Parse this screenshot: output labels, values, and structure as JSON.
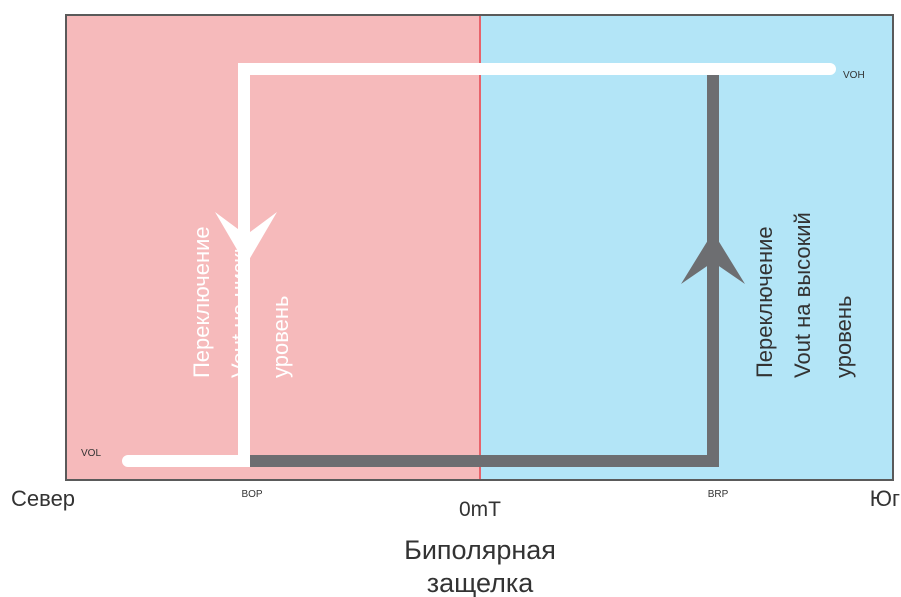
{
  "labels": {
    "north": "Север",
    "south": "Юг",
    "zero": "0mT",
    "bop": "BOP",
    "brp": "BRP",
    "vol": "VOL",
    "voh": "VOH",
    "switch_low": [
      "Переключение",
      "Vout на низкий",
      "уровень"
    ],
    "switch_high": [
      "Переключение",
      "Vout на высокий",
      "уровень"
    ],
    "caption": [
      "Биполярная",
      "защелка"
    ]
  },
  "colors": {
    "north_region": "#f6babb",
    "south_region": "#b3e5f7",
    "divider": "#e8636b",
    "frame": "#5a5a5a",
    "rising_path": "#6d6e71",
    "falling_path": "#ffffff"
  }
}
